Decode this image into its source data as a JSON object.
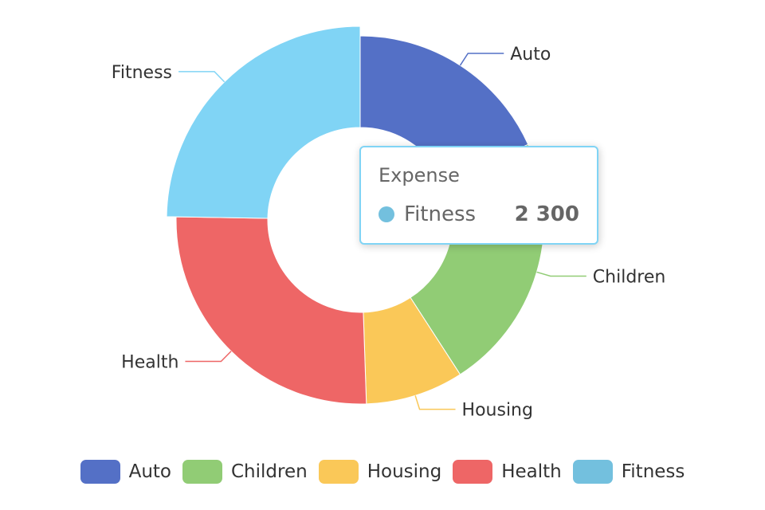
{
  "chart_data": {
    "type": "pie",
    "variant": "donut",
    "series_name": "Expense",
    "categories": [
      "Auto",
      "Children",
      "Housing",
      "Health",
      "Fitness"
    ],
    "values": [
      1700,
      2100,
      800,
      2400,
      2300
    ],
    "colors": [
      "#5470c6",
      "#91cc75",
      "#fac858",
      "#ee6666",
      "#73c0de"
    ],
    "highlighted": "Fitness",
    "highlight_color": "#80d4f5",
    "legend_position": "bottom",
    "labels": "outside with leader lines"
  },
  "tooltip": {
    "title": "Expense",
    "name": "Fitness",
    "value": "2 300",
    "dot_color": "#73c0de"
  },
  "legend": {
    "items": [
      {
        "label": "Auto",
        "color": "#5470c6"
      },
      {
        "label": "Children",
        "color": "#91cc75"
      },
      {
        "label": "Housing",
        "color": "#fac858"
      },
      {
        "label": "Health",
        "color": "#ee6666"
      },
      {
        "label": "Fitness",
        "color": "#73c0de"
      }
    ]
  }
}
